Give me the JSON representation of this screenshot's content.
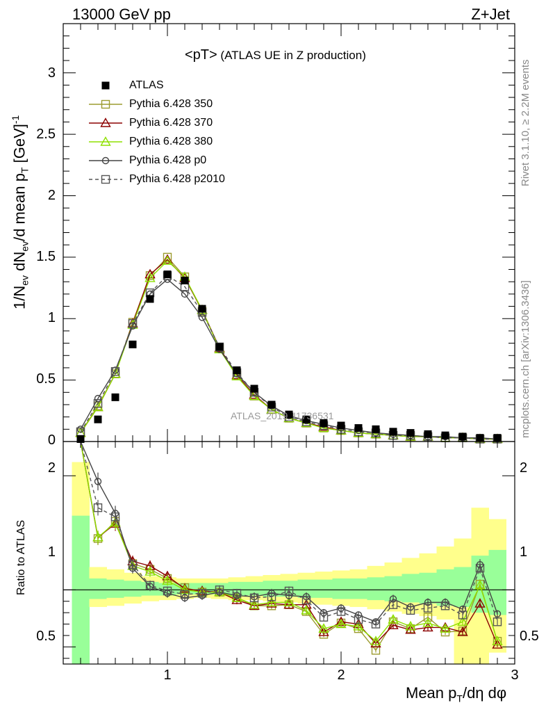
{
  "header": {
    "left": "13000 GeV pp",
    "right": "Z+Jet"
  },
  "side_labels": {
    "rivet": "Rivet 3.1.10, ≥ 2.2M events",
    "mcplots": "mcplots.cern.ch [arXiv:1306.3436]"
  },
  "watermark": "ATLAS_2019_I1736531",
  "plot_title": {
    "main": "<pT>",
    "sub": " (ATLAS UE in Z production)"
  },
  "axes": {
    "ylabel_top": {
      "a": "1/N",
      "a_sub": "ev",
      "b": " dN",
      "b_sub": "ev",
      "c": "/d mean p",
      "c_sub": "T",
      "d": " [GeV]",
      "d_sup": "-1"
    },
    "ylabel_bottom": "Ratio to ATLAS",
    "xlabel": {
      "a": "Mean p",
      "a_sub": "T",
      "b": "/dη dφ"
    },
    "top_ticks": [
      "0",
      "0.5",
      "1",
      "1.5",
      "2",
      "2.5",
      "3"
    ],
    "bottom_ticks_left": [
      "0.5",
      "1",
      "2"
    ],
    "bottom_ticks_right": [
      "0.5",
      "1",
      "2"
    ],
    "x_ticks": [
      "1",
      "2",
      "3"
    ]
  },
  "colors": {
    "data": "#000000",
    "p350": "#9c9b2f",
    "p370": "#8b0000",
    "p380": "#8ee000",
    "p0": "#444444",
    "p2010": "#555555",
    "band_inner": "#99ff99",
    "band_outer": "#ffff8c"
  },
  "chart_data": {
    "type": "line",
    "xlim": [
      0.4,
      3.0
    ],
    "ylim_top": [
      0,
      3.4
    ],
    "ylim_ratio": [
      0.35,
      2.3
    ],
    "x": [
      0.5,
      0.6,
      0.7,
      0.8,
      0.9,
      1.0,
      1.1,
      1.2,
      1.3,
      1.4,
      1.5,
      1.6,
      1.7,
      1.8,
      1.9,
      2.0,
      2.1,
      2.2,
      2.3,
      2.4,
      2.5,
      2.6,
      2.7,
      2.8,
      2.9
    ],
    "data": {
      "name": "ATLAS",
      "values": [
        0.02,
        0.18,
        0.36,
        0.79,
        1.16,
        1.36,
        1.31,
        1.08,
        0.77,
        0.58,
        0.43,
        0.3,
        0.22,
        0.18,
        0.15,
        0.13,
        0.11,
        0.1,
        0.08,
        0.07,
        0.06,
        0.05,
        0.04,
        0.03,
        0.03
      ]
    },
    "band_inner": [
      [
        0.35,
        1.65
      ],
      [
        0.92,
        1.1
      ],
      [
        0.93,
        1.09
      ],
      [
        0.94,
        1.08
      ],
      [
        0.95,
        1.07
      ],
      [
        0.95,
        1.06
      ],
      [
        0.96,
        1.06
      ],
      [
        0.96,
        1.06
      ],
      [
        0.96,
        1.06
      ],
      [
        0.95,
        1.07
      ],
      [
        0.95,
        1.07
      ],
      [
        0.94,
        1.08
      ],
      [
        0.94,
        1.08
      ],
      [
        0.93,
        1.09
      ],
      [
        0.93,
        1.09
      ],
      [
        0.92,
        1.1
      ],
      [
        0.92,
        1.1
      ],
      [
        0.91,
        1.11
      ],
      [
        0.9,
        1.12
      ],
      [
        0.89,
        1.14
      ],
      [
        0.88,
        1.15
      ],
      [
        0.86,
        1.18
      ],
      [
        0.85,
        1.2
      ],
      [
        0.8,
        1.3
      ],
      [
        0.78,
        1.35
      ]
    ],
    "band_outer": [
      [
        0.35,
        2.12
      ],
      [
        0.85,
        1.2
      ],
      [
        0.86,
        1.18
      ],
      [
        0.88,
        1.15
      ],
      [
        0.9,
        1.12
      ],
      [
        0.91,
        1.11
      ],
      [
        0.92,
        1.1
      ],
      [
        0.93,
        1.1
      ],
      [
        0.92,
        1.1
      ],
      [
        0.91,
        1.11
      ],
      [
        0.91,
        1.12
      ],
      [
        0.9,
        1.13
      ],
      [
        0.89,
        1.14
      ],
      [
        0.88,
        1.15
      ],
      [
        0.87,
        1.16
      ],
      [
        0.86,
        1.17
      ],
      [
        0.85,
        1.18
      ],
      [
        0.83,
        1.21
      ],
      [
        0.81,
        1.24
      ],
      [
        0.79,
        1.28
      ],
      [
        0.77,
        1.32
      ],
      [
        0.74,
        1.38
      ],
      [
        0.35,
        1.45
      ],
      [
        0.35,
        1.72
      ],
      [
        0.45,
        1.62
      ]
    ],
    "series": [
      {
        "name": "Pythia 6.428 350",
        "key": "p350",
        "marker": "square-open",
        "dash": false,
        "values": [
          0.07,
          0.29,
          0.55,
          0.97,
          1.35,
          1.5,
          1.34,
          1.06,
          0.76,
          0.54,
          0.37,
          0.26,
          0.19,
          0.15,
          0.11,
          0.09,
          0.07,
          0.06,
          0.05,
          0.04,
          0.04,
          0.03,
          0.03,
          0.02,
          0.02
        ],
        "ratio": [
          3.5,
          1.45,
          1.6,
          1.23,
          1.18,
          1.1,
          1.02,
          0.98,
          0.98,
          0.93,
          0.86,
          0.86,
          0.87,
          0.81,
          0.61,
          0.71,
          0.66,
          0.47,
          0.72,
          0.66,
          0.76,
          0.63,
          0.64,
          1.05,
          0.55
        ]
      },
      {
        "name": "Pythia 6.428 370",
        "key": "p370",
        "marker": "triangle-open",
        "dash": false,
        "values": [
          0.07,
          0.28,
          0.55,
          0.96,
          1.36,
          1.48,
          1.33,
          1.07,
          0.76,
          0.54,
          0.38,
          0.26,
          0.19,
          0.15,
          0.12,
          0.09,
          0.07,
          0.06,
          0.05,
          0.04,
          0.04,
          0.03,
          0.03,
          0.02,
          0.02
        ],
        "ratio": [
          3.4,
          1.46,
          1.58,
          1.25,
          1.21,
          1.12,
          1.01,
          0.99,
          0.98,
          0.91,
          0.86,
          0.88,
          0.87,
          0.87,
          0.63,
          0.72,
          0.7,
          0.53,
          0.69,
          0.65,
          0.67,
          0.67,
          0.63,
          0.88,
          0.52
        ]
      },
      {
        "name": "Pythia 6.428 380",
        "key": "p380",
        "marker": "triangle-open",
        "dash": false,
        "values": [
          0.07,
          0.28,
          0.55,
          0.95,
          1.33,
          1.47,
          1.34,
          1.07,
          0.75,
          0.53,
          0.37,
          0.26,
          0.19,
          0.15,
          0.11,
          0.09,
          0.07,
          0.06,
          0.05,
          0.04,
          0.04,
          0.03,
          0.03,
          0.02,
          0.02
        ],
        "ratio": [
          3.4,
          1.46,
          1.59,
          1.21,
          1.16,
          1.08,
          1.0,
          0.98,
          0.98,
          0.93,
          0.87,
          0.89,
          0.89,
          0.82,
          0.66,
          0.7,
          0.68,
          0.55,
          0.74,
          0.68,
          0.71,
          0.66,
          0.72,
          1.04,
          0.55
        ]
      },
      {
        "name": "Pythia 6.428 p0",
        "key": "p0",
        "marker": "circle-open",
        "dash": false,
        "values": [
          0.1,
          0.35,
          0.58,
          0.94,
          1.2,
          1.32,
          1.2,
          1.01,
          0.75,
          0.55,
          0.4,
          0.29,
          0.21,
          0.17,
          0.14,
          0.11,
          0.09,
          0.07,
          0.06,
          0.05,
          0.04,
          0.04,
          0.03,
          0.03,
          0.02
        ],
        "ratio": [
          4.8,
          1.95,
          1.67,
          1.19,
          1.03,
          0.97,
          0.93,
          0.95,
          0.98,
          0.95,
          0.94,
          0.97,
          0.95,
          0.94,
          0.8,
          0.84,
          0.78,
          0.72,
          0.92,
          0.85,
          0.89,
          0.89,
          0.83,
          1.22,
          0.79
        ]
      },
      {
        "name": "Pythia 6.428 p2010",
        "key": "p2010",
        "marker": "square-open",
        "dash": true,
        "values": [
          0.08,
          0.31,
          0.57,
          0.96,
          1.21,
          1.35,
          1.26,
          1.05,
          0.77,
          0.56,
          0.4,
          0.28,
          0.2,
          0.16,
          0.13,
          0.1,
          0.08,
          0.07,
          0.05,
          0.05,
          0.04,
          0.03,
          0.03,
          0.02,
          0.02
        ],
        "ratio": [
          4.0,
          1.72,
          1.64,
          1.22,
          1.04,
          0.99,
          0.96,
          0.97,
          1.0,
          0.97,
          0.93,
          0.94,
          0.99,
          0.91,
          0.76,
          0.81,
          0.74,
          0.7,
          0.87,
          0.82,
          0.84,
          0.86,
          0.78,
          1.19,
          0.72
        ]
      }
    ]
  }
}
